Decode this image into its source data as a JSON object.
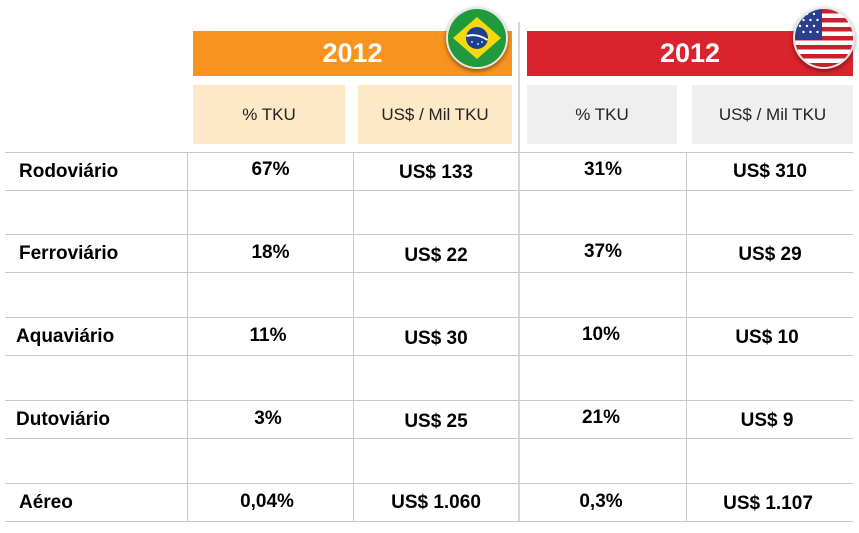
{
  "brazil": {
    "year": "2012",
    "accent": "#f7931e",
    "sub_bg": "#fde8c8",
    "col_pct": "% TKU",
    "col_cost": "US$ / Mil TKU",
    "flag_icon": "brazil-flag-icon"
  },
  "usa": {
    "year": "2012",
    "accent": "#d9232d",
    "sub_bg": "#efefef",
    "col_pct": "% TKU",
    "col_cost": "US$ / Mil TKU",
    "flag_icon": "usa-flag-icon"
  },
  "rows": [
    {
      "mode": "Rodoviário",
      "br_pct": "67%",
      "br_cost": "US$ 133",
      "us_pct": "31%",
      "us_cost": "US$ 310"
    },
    {
      "mode": "Ferroviário",
      "br_pct": "18%",
      "br_cost": "US$ 22",
      "us_pct": "37%",
      "us_cost": "US$ 29"
    },
    {
      "mode": "Aquaviário",
      "br_pct": "11%",
      "br_cost": "US$ 30",
      "us_pct": "10%",
      "us_cost": "US$ 10"
    },
    {
      "mode": "Dutoviário",
      "br_pct": "3%",
      "br_cost": "US$ 25",
      "us_pct": "21%",
      "us_cost": "US$ 9"
    },
    {
      "mode": "Aéreo",
      "br_pct": "0,04%",
      "br_cost": "US$ 1.060",
      "us_pct": "0,3%",
      "us_cost": "US$ 1.107"
    }
  ]
}
